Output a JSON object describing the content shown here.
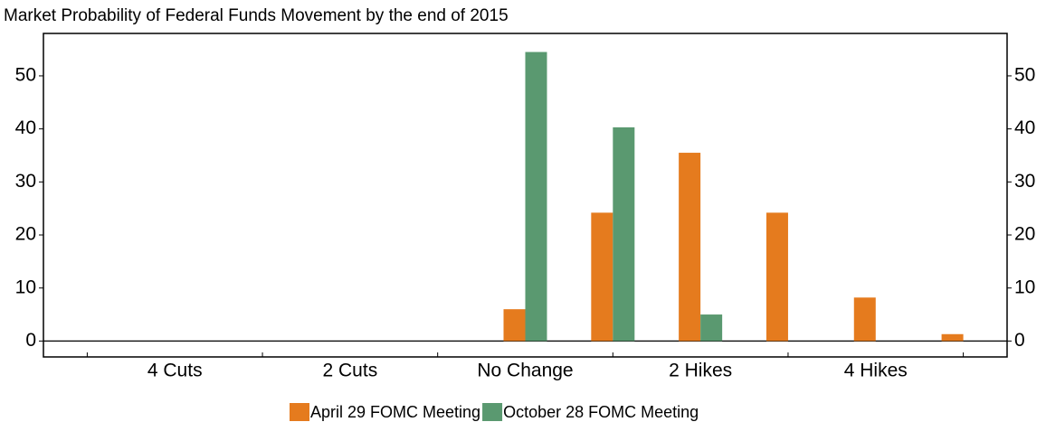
{
  "chart_data": {
    "type": "bar",
    "title": "Market Probability of Federal Funds Movement by the end of 2015",
    "categories": [
      null,
      "4 Cuts",
      null,
      "2 Cuts",
      null,
      "No Change",
      null,
      "2 Hikes",
      null,
      "4 Hikes",
      null
    ],
    "series": [
      {
        "name": "April 29 FOMC Meeting",
        "color": "#e57b1e",
        "values": [
          0,
          0,
          0,
          0,
          0,
          6,
          24.2,
          35.5,
          24.2,
          8.2,
          1.3
        ]
      },
      {
        "name": "October 28 FOMC Meeting",
        "color": "#5a9970",
        "values": [
          0,
          0,
          0,
          0,
          0,
          54.5,
          40.3,
          5,
          0,
          0,
          0
        ]
      }
    ],
    "ylim": [
      -3,
      58
    ],
    "yticks": [
      0,
      10,
      20,
      30,
      40,
      50
    ],
    "grid": false,
    "legend": "bottom"
  }
}
